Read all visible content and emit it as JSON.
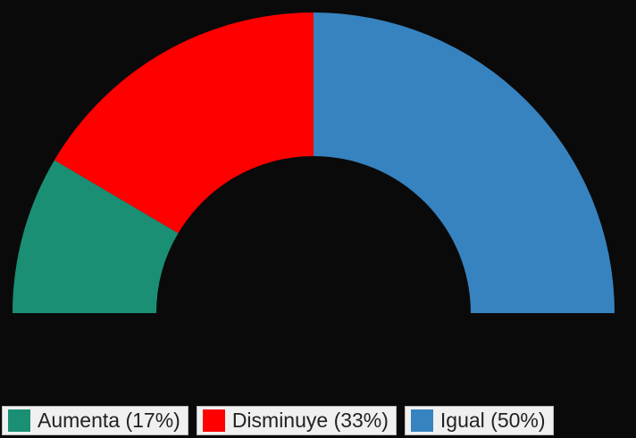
{
  "chart_data": {
    "type": "semi-donut",
    "categories": [
      "Aumenta (17%)",
      "Disminuye (33%)",
      "Igual (50%)"
    ],
    "values": [
      17,
      33,
      50
    ],
    "colors": [
      "#1b8f74",
      "#ff0000",
      "#3783c0"
    ]
  }
}
